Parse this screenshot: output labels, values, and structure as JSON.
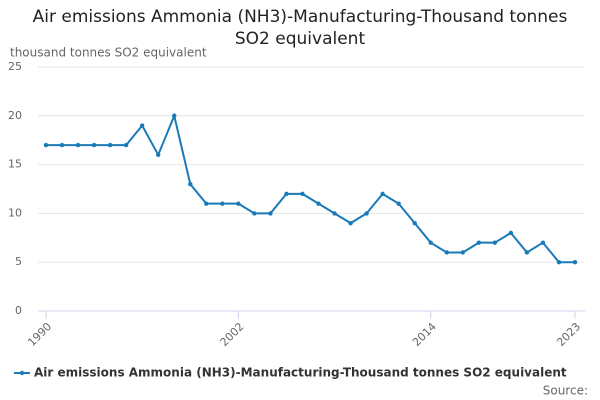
{
  "chart_data": {
    "type": "line",
    "title": "Air emissions Ammonia (NH3)-Manufacturing-Thousand tonnes SO2 equivalent",
    "y_label": "thousand tonnes SO2 equivalent",
    "source": "Source:",
    "x": [
      1990,
      1991,
      1992,
      1993,
      1994,
      1995,
      1996,
      1997,
      1998,
      1999,
      2000,
      2001,
      2002,
      2003,
      2004,
      2005,
      2006,
      2007,
      2008,
      2009,
      2010,
      2011,
      2012,
      2013,
      2014,
      2015,
      2016,
      2017,
      2018,
      2019,
      2020,
      2021,
      2022,
      2023
    ],
    "series": [
      {
        "name": "Air emissions Ammonia (NH3)-Manufacturing-Thousand tonnes SO2 equivalent",
        "color": "#1a7ab8",
        "values": [
          17,
          17,
          17,
          17,
          17,
          17,
          19,
          16,
          20,
          13,
          11,
          11,
          11,
          10,
          10,
          12,
          12,
          11,
          10,
          9,
          10,
          12,
          11,
          9,
          7,
          6,
          6,
          7,
          7,
          8,
          6,
          7,
          5,
          5
        ]
      }
    ],
    "xlim": [
      1990,
      2023
    ],
    "xticks": [
      1990,
      2002,
      2014,
      2023
    ],
    "ylim": [
      0,
      25
    ],
    "yticks": [
      0,
      5,
      10,
      15,
      20,
      25
    ],
    "grid": true
  }
}
